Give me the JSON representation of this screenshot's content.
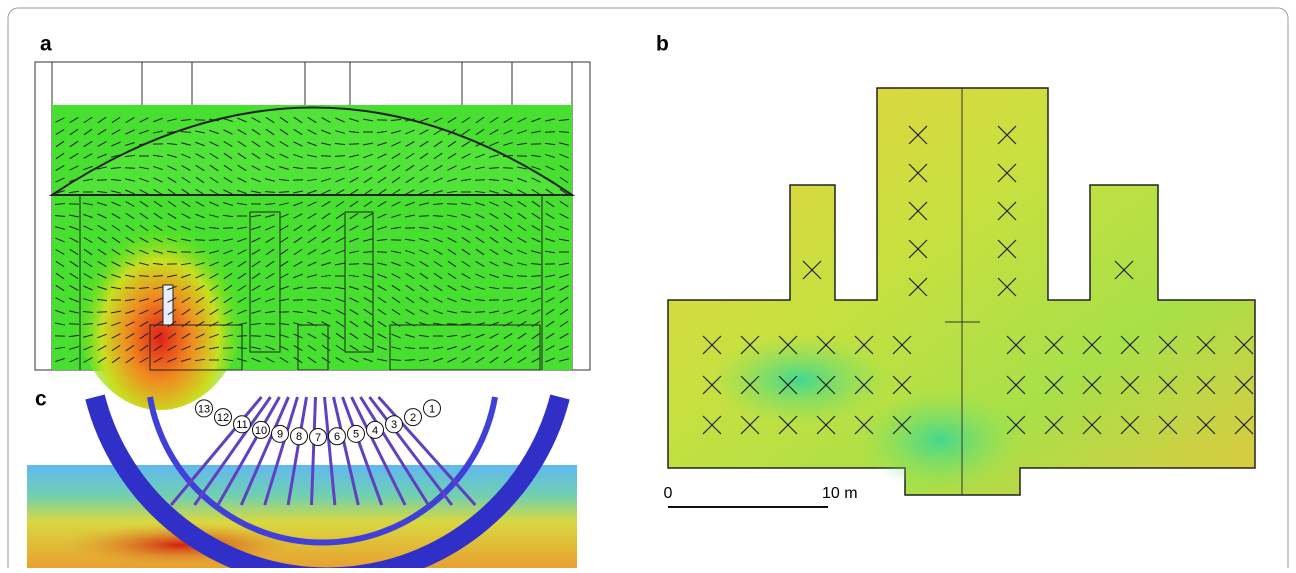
{
  "panel_labels": [
    "a",
    "b",
    "c"
  ],
  "scale_bar": {
    "start": "0",
    "end": "10 m"
  },
  "wheel_numbers": [
    "1",
    "2",
    "3",
    "4",
    "5",
    "6",
    "7",
    "8",
    "9",
    "10",
    "11",
    "12",
    "13"
  ]
}
